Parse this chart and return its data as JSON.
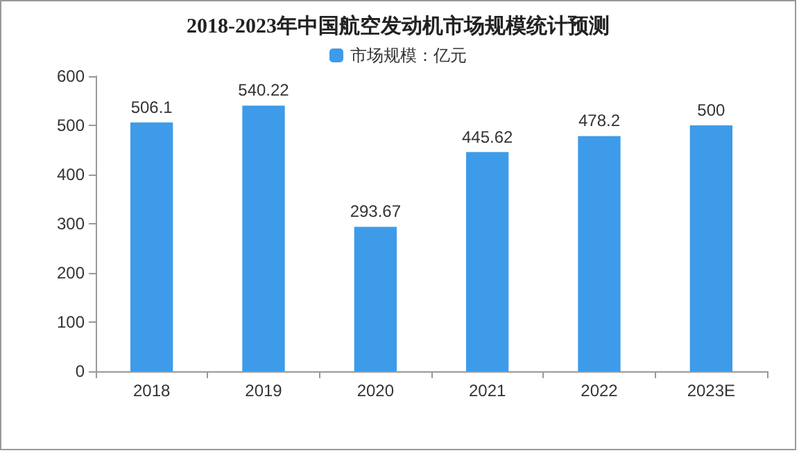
{
  "chart_data": {
    "type": "bar",
    "title": "2018-2023年中国航空发动机市场规模统计预测",
    "categories": [
      "2018",
      "2019",
      "2020",
      "2021",
      "2022",
      "2023E"
    ],
    "series": [
      {
        "name": "市场规模：亿元",
        "color": "#3d9be9",
        "values": [
          506.1,
          540.22,
          293.67,
          445.62,
          478.2,
          500
        ]
      }
    ],
    "ylim": [
      0,
      600
    ],
    "yticks": [
      0,
      100,
      200,
      300,
      400,
      500,
      600
    ],
    "grid": false,
    "legend": "top",
    "data_labels": true
  }
}
